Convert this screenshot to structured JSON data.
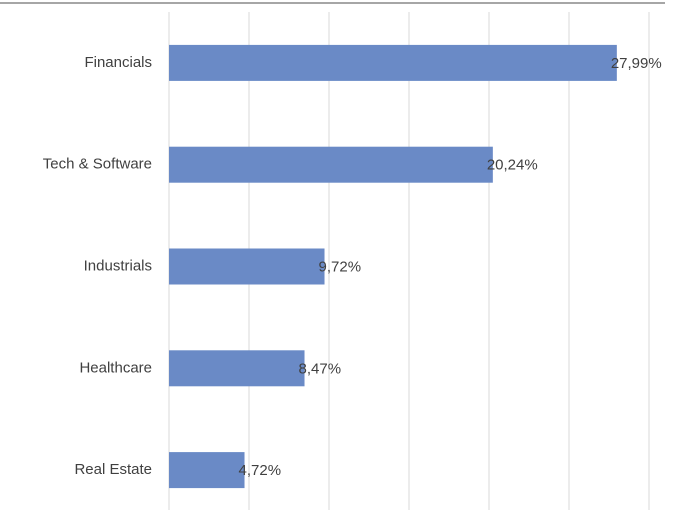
{
  "chart_data": {
    "type": "hbar",
    "categories": [
      "Financials",
      "Tech & Software",
      "Industrials",
      "Healthcare",
      "Real Estate"
    ],
    "values": [
      27.99,
      20.24,
      9.72,
      8.47,
      4.72
    ],
    "value_labels": [
      "27,99%",
      "20,24%",
      "9,72%",
      "8,47%",
      "4,72%"
    ],
    "color": "#6a8ac6",
    "xlim": [
      0,
      30
    ],
    "xticks": [
      0,
      5,
      10,
      15,
      20,
      25,
      30
    ],
    "grid": true
  }
}
